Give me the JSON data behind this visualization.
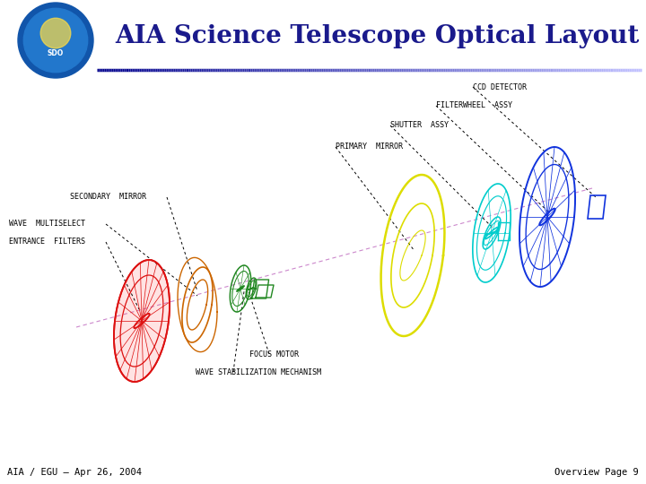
{
  "title": "AIA Science Telescope Optical Layout",
  "title_color": "#1a1a8c",
  "title_fontsize": 20,
  "footer_left": "AIA / EGU – Apr 26, 2004",
  "footer_right": "Overview Page 9",
  "footer_fontsize": 7.5,
  "bg_color": "#ffffff",
  "optical_axis_color": "#cc88cc",
  "label_fontsize": 6.0
}
